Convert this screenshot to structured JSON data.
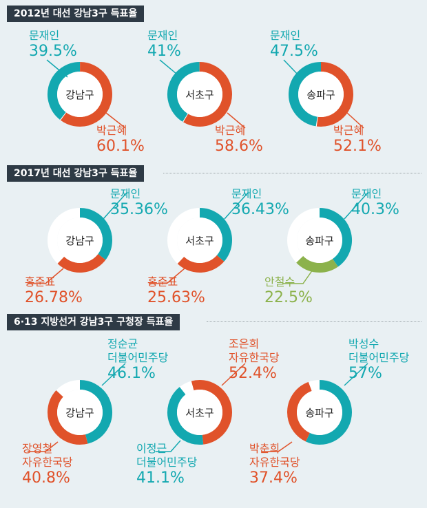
{
  "colors": {
    "teal": "#13a8b0",
    "orange": "#e0522a",
    "green": "#8cb24c",
    "white": "#ffffff",
    "header": "#2e3a45",
    "bg": "#e9f0f3"
  },
  "chart_data": [
    {
      "type": "pie",
      "title": "2012년 대선 강남3구 득표율",
      "charts": [
        {
          "district": "강남구",
          "slices": [
            {
              "name": "문재인",
              "value": 39.5,
              "label": "39.5%",
              "color": "teal"
            },
            {
              "name": "박근혜",
              "value": 60.1,
              "label": "60.1%",
              "color": "orange"
            }
          ]
        },
        {
          "district": "서초구",
          "slices": [
            {
              "name": "문재인",
              "value": 41,
              "label": "41%",
              "color": "teal"
            },
            {
              "name": "박근혜",
              "value": 58.6,
              "label": "58.6%",
              "color": "orange"
            }
          ]
        },
        {
          "district": "송파구",
          "slices": [
            {
              "name": "문재인",
              "value": 47.5,
              "label": "47.5%",
              "color": "teal"
            },
            {
              "name": "박근혜",
              "value": 52.1,
              "label": "52.1%",
              "color": "orange"
            }
          ]
        }
      ]
    },
    {
      "type": "pie",
      "title": "2017년 대선 강남3구 득표율",
      "charts": [
        {
          "district": "강남구",
          "slices": [
            {
              "name": "문재인",
              "value": 35.36,
              "label": "35.36%",
              "color": "teal"
            },
            {
              "name": "홍준표",
              "value": 26.78,
              "label": "26.78%",
              "color": "orange"
            }
          ]
        },
        {
          "district": "서초구",
          "slices": [
            {
              "name": "문재인",
              "value": 36.43,
              "label": "36.43%",
              "color": "teal"
            },
            {
              "name": "홍준표",
              "value": 25.63,
              "label": "25.63%",
              "color": "orange"
            }
          ]
        },
        {
          "district": "송파구",
          "slices": [
            {
              "name": "문재인",
              "value": 40.3,
              "label": "40.3%",
              "color": "teal"
            },
            {
              "name": "안철수",
              "value": 22.5,
              "label": "22.5%",
              "color": "green"
            }
          ]
        }
      ]
    },
    {
      "type": "pie",
      "title": "6·13 지방선거 강남3구 구청장 득표율",
      "charts": [
        {
          "district": "강남구",
          "slices": [
            {
              "name": "정순균",
              "party": "더불어민주당",
              "value": 46.1,
              "label": "46.1%",
              "color": "teal"
            },
            {
              "name": "장영철",
              "party": "자유한국당",
              "value": 40.8,
              "label": "40.8%",
              "color": "orange"
            }
          ]
        },
        {
          "district": "서초구",
          "slices": [
            {
              "name": "조은희",
              "party": "자유한국당",
              "value": 52.4,
              "label": "52.4%",
              "color": "orange"
            },
            {
              "name": "이정근",
              "party": "더불어민주당",
              "value": 41.1,
              "label": "41.1%",
              "color": "teal"
            }
          ]
        },
        {
          "district": "송파구",
          "slices": [
            {
              "name": "박성수",
              "party": "더불어민주당",
              "value": 57,
              "label": "57%",
              "color": "teal"
            },
            {
              "name": "박춘희",
              "party": "자유한국당",
              "value": 37.4,
              "label": "37.4%",
              "color": "orange"
            }
          ]
        }
      ]
    }
  ]
}
